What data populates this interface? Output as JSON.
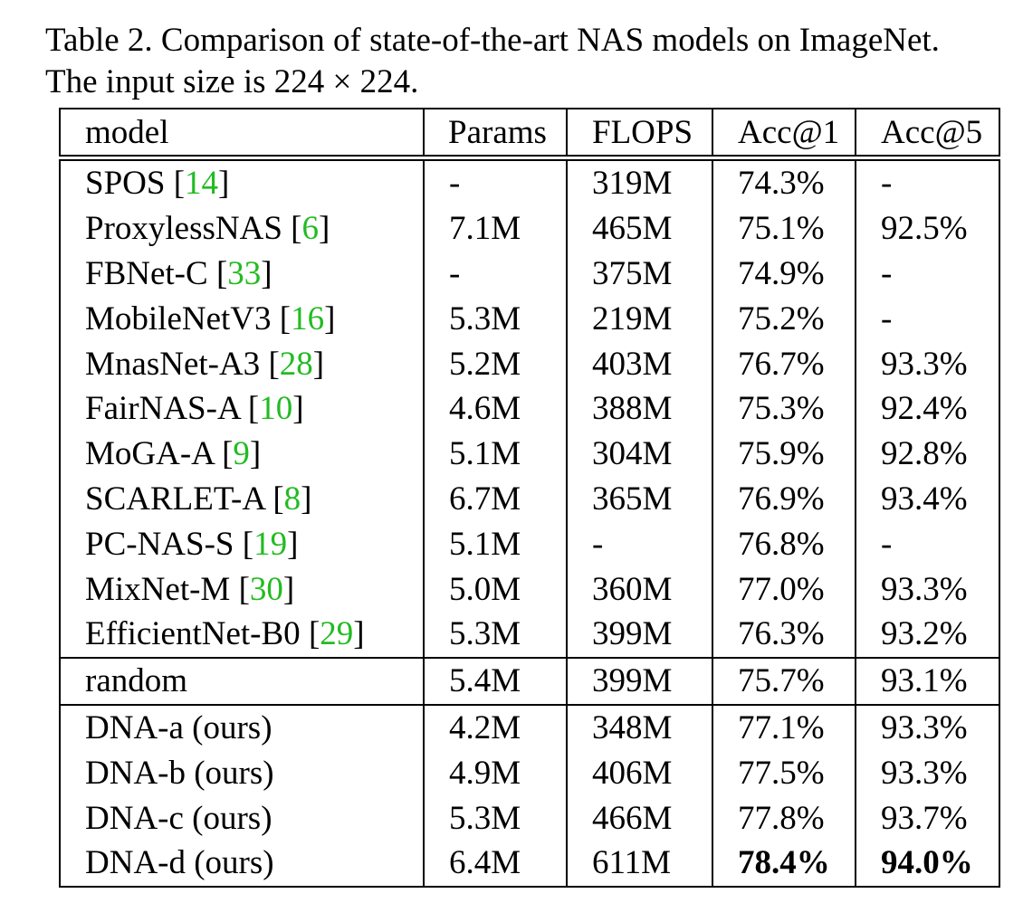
{
  "caption": {
    "line1": "Table 2. Comparison of state-of-the-art NAS models on ImageNet.",
    "line2": "The input size is 224 × 224."
  },
  "table": {
    "headers": [
      "model",
      "Params",
      "FLOPS",
      "Acc@1",
      "Acc@5"
    ],
    "groups": [
      [
        {
          "model": "SPOS",
          "ref": "14",
          "params": "-",
          "flops": "319M",
          "acc1": "74.3%",
          "acc5": "-"
        },
        {
          "model": "ProxylessNAS",
          "ref": "6",
          "params": "7.1M",
          "flops": "465M",
          "acc1": "75.1%",
          "acc5": "92.5%"
        },
        {
          "model": "FBNet-C",
          "ref": "33",
          "params": "-",
          "flops": "375M",
          "acc1": "74.9%",
          "acc5": "-"
        },
        {
          "model": "MobileNetV3",
          "ref": "16",
          "params": "5.3M",
          "flops": "219M",
          "acc1": "75.2%",
          "acc5": "-"
        },
        {
          "model": "MnasNet-A3",
          "ref": "28",
          "params": "5.2M",
          "flops": "403M",
          "acc1": "76.7%",
          "acc5": "93.3%"
        },
        {
          "model": "FairNAS-A",
          "ref": "10",
          "params": "4.6M",
          "flops": "388M",
          "acc1": "75.3%",
          "acc5": "92.4%"
        },
        {
          "model": "MoGA-A",
          "ref": "9",
          "params": "5.1M",
          "flops": "304M",
          "acc1": "75.9%",
          "acc5": "92.8%"
        },
        {
          "model": "SCARLET-A",
          "ref": "8",
          "params": "6.7M",
          "flops": "365M",
          "acc1": "76.9%",
          "acc5": "93.4%"
        },
        {
          "model": "PC-NAS-S",
          "ref": "19",
          "params": "5.1M",
          "flops": "-",
          "acc1": "76.8%",
          "acc5": "-"
        },
        {
          "model": "MixNet-M",
          "ref": "30",
          "params": "5.0M",
          "flops": "360M",
          "acc1": "77.0%",
          "acc5": "93.3%"
        },
        {
          "model": "EfficientNet-B0",
          "ref": "29",
          "params": "5.3M",
          "flops": "399M",
          "acc1": "76.3%",
          "acc5": "93.2%"
        }
      ],
      [
        {
          "model": "random",
          "ref": "",
          "params": "5.4M",
          "flops": "399M",
          "acc1": "75.7%",
          "acc5": "93.1%"
        }
      ],
      [
        {
          "model": "DNA-a (ours)",
          "ref": "",
          "params": "4.2M",
          "flops": "348M",
          "acc1": "77.1%",
          "acc5": "93.3%"
        },
        {
          "model": "DNA-b (ours)",
          "ref": "",
          "params": "4.9M",
          "flops": "406M",
          "acc1": "77.5%",
          "acc5": "93.3%"
        },
        {
          "model": "DNA-c (ours)",
          "ref": "",
          "params": "5.3M",
          "flops": "466M",
          "acc1": "77.8%",
          "acc5": "93.7%"
        },
        {
          "model": "DNA-d (ours)",
          "ref": "",
          "params": "6.4M",
          "flops": "611M",
          "acc1": "78.4%",
          "acc5": "94.0%",
          "bold": [
            "acc1",
            "acc5"
          ]
        }
      ]
    ]
  }
}
